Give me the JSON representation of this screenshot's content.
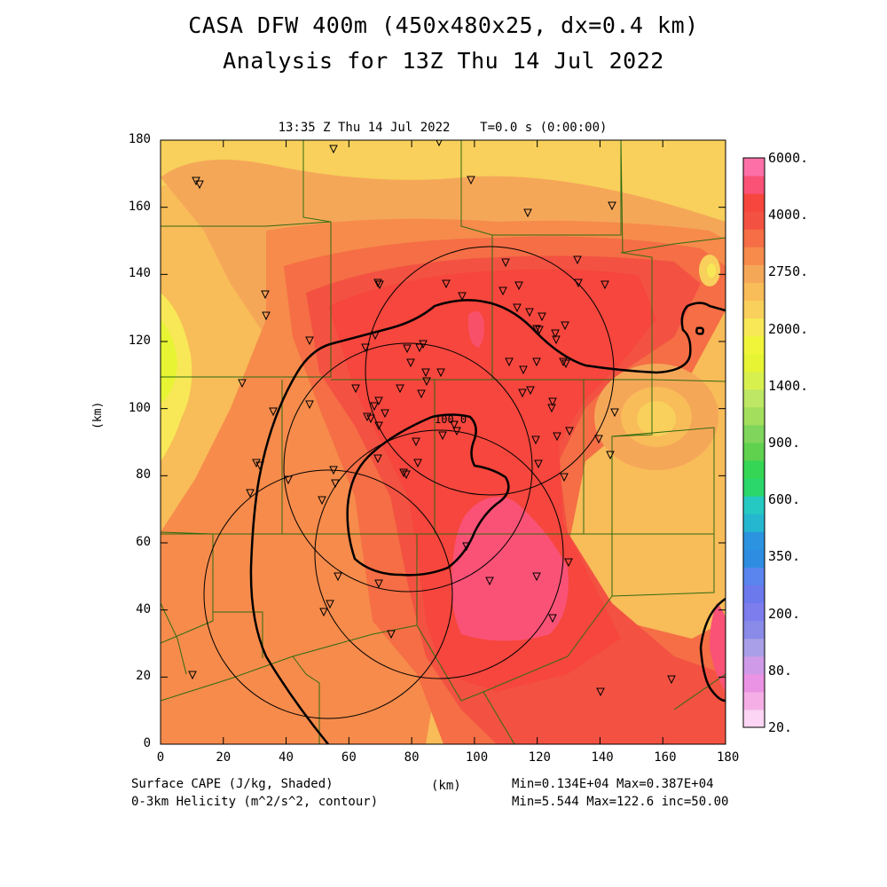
{
  "title": {
    "line1": "CASA DFW 400m (450x480x25, dx=0.4 km)",
    "line2": "Analysis for 13Z Thu 14 Jul 2022"
  },
  "subtitle": "13:35 Z Thu 14 Jul 2022    T=0.0 s (0:00:00)",
  "axes": {
    "x_ticks": [
      "0",
      "20",
      "40",
      "60",
      "80",
      "100",
      "120",
      "140",
      "160",
      "180"
    ],
    "y_ticks": [
      "0",
      "20",
      "40",
      "60",
      "80",
      "100",
      "120",
      "140",
      "160",
      "180"
    ],
    "y_label": "(km)",
    "x_label": "(km)",
    "range_km": [
      0,
      180
    ]
  },
  "colorbar": {
    "labels": [
      "6000.",
      "4000.",
      "2750.",
      "2000.",
      "1400.",
      "900.",
      "600.",
      "350.",
      "200.",
      "80.",
      "20."
    ],
    "colors": [
      "#fbd5f3",
      "#f5aee6",
      "#ea92e3",
      "#cf9be8",
      "#a99fe8",
      "#8a8ae8",
      "#7d7dee",
      "#6b79ec",
      "#5a84ee",
      "#2e8de0",
      "#2b93df",
      "#25b7cf",
      "#26c9c2",
      "#2bd66b",
      "#35d655",
      "#5fd14f",
      "#80d55c",
      "#a3df5d",
      "#bde764",
      "#d8f04e",
      "#e6f434",
      "#f0f53a",
      "#f8e857",
      "#f8d05b",
      "#f8bc58",
      "#f5a758",
      "#f68b4b",
      "#f56e45",
      "#f35242",
      "#f6463d",
      "#fa5276",
      "#fc70a7"
    ]
  },
  "footer": {
    "left1": "Surface CAPE (J/kg, Shaded)",
    "left2": "0-3km Helicity (m^2/s^2, contour)",
    "center": "(km)",
    "right1": "Min=0.134E+04 Max=0.387E+04",
    "right2": "Min=5.544 Max=122.6 inc=50.00"
  },
  "contour_label": "100.0",
  "colors": {
    "cape_high": "#fa5276",
    "cape_mid": "#f5463d",
    "cape_low": "#f8d05b",
    "county_lines": "#2f6b12"
  }
}
